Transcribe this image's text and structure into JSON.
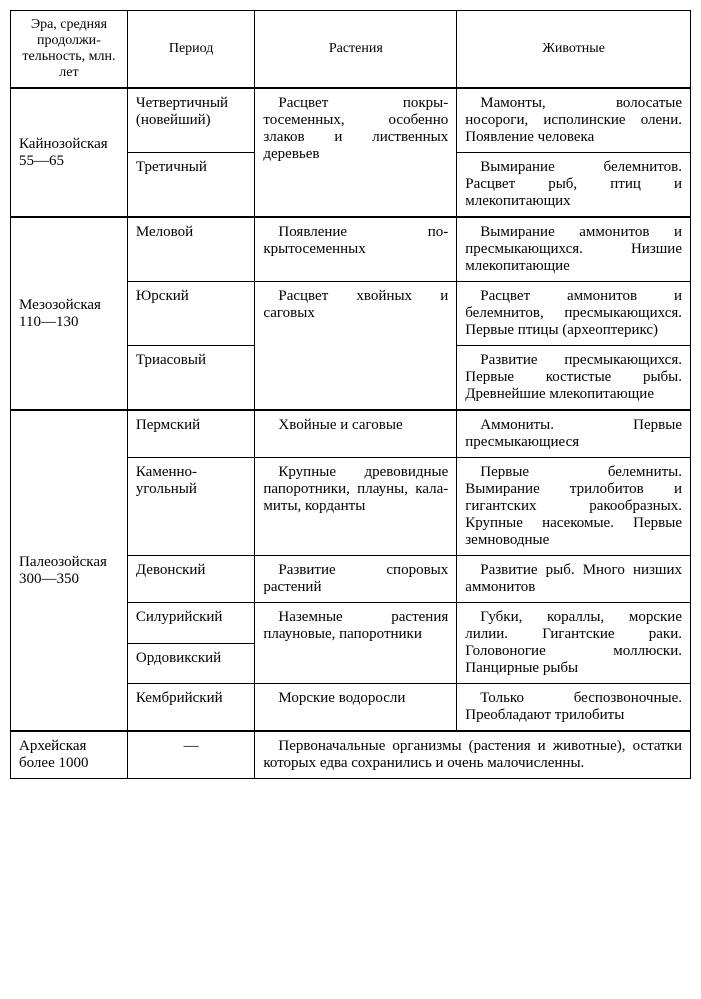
{
  "headers": {
    "era": "Эра, средняя продолжи­тельность, млн. лет",
    "period": "Период",
    "plants": "Растения",
    "animals": "Животные"
  },
  "cenozoic": {
    "era": "Кайнозой­ская 55—65",
    "rows": [
      {
        "period": "Четвертичный (новейший)",
        "plants": "Расцвет покры­тосеменных, осо­бенно злаков и ли­ственных деревьев",
        "animals": "Мамонты, волосатые носороги, исполинские олени.\nПоявление человека"
      },
      {
        "period": "Третичный",
        "animals": "Вымирание белемни­тов. Расцвет рыб, птиц и млекопитающих"
      }
    ]
  },
  "mesozoic": {
    "era": "Мезозой­ская 110—130",
    "rows": [
      {
        "period": "Меловой",
        "plants": "Появление по­крытосеменных",
        "animals": "Вымирание аммонитов и пресмыкающихся. Низ­шие млекопитающие"
      },
      {
        "period": "Юрский",
        "plants": "Расцвет хвойных и саговых",
        "animals": "Расцвет аммонитов и белемнитов, пресмыкаю­щихся. Первые птицы (археоптерикс)"
      },
      {
        "period": "Триасовый",
        "animals": "Развитие пресмыка­ющихся. Первые кости­стые рыбы. Древнейшие млекопитающие"
      }
    ]
  },
  "paleozoic": {
    "era": "Палеозой­ская 300—350",
    "rows": [
      {
        "period": "Пермский",
        "plants": "Хвойные и саго­вые",
        "animals": "Аммониты. Первые пресмыкающиеся"
      },
      {
        "period": "Каменно­угольный",
        "plants": "Крупные древо­видные папоротни­ки, плауны, кала­миты, корданты",
        "animals": "Первые белемниты. Вымирание трилобитов и гигантских ракообраз­ных. Крупные насеко­мые. Первые земновод­ные"
      },
      {
        "period": "Девонский",
        "plants": "Развитие споро­вых растений",
        "animals": "Развитие рыб. Много низших аммонитов"
      },
      {
        "period": "Силурийский",
        "plants": "Наземные расте­ния плауновые, папоротники",
        "animals": "Губки, кораллы, мор­ские лилии. Гигантские раки. Головоногие мол­люски. Панцирные рыбы"
      },
      {
        "period": "Ордовикский"
      },
      {
        "period": "Кембрийский",
        "plants": "Морские водо­росли",
        "animals": "Только беспозвоноч­ные. Преобладают три­лобиты"
      }
    ]
  },
  "archean": {
    "era": "Архейская более 1000",
    "period": "—",
    "combined": "Первоначальные организмы (растения и животные), остатки которых едва сохра­нились и очень малочисленны."
  }
}
